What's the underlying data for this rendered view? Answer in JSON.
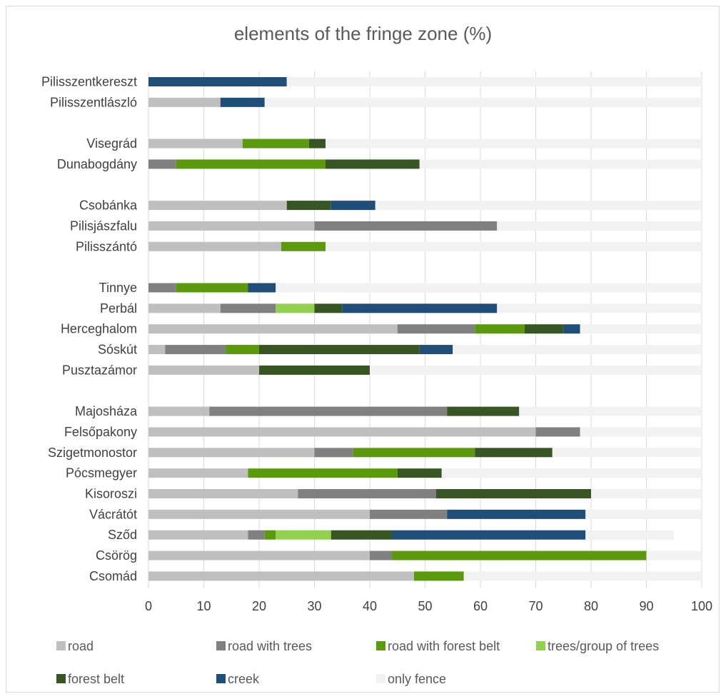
{
  "chart_data": {
    "type": "bar",
    "orientation": "horizontal",
    "stacked": true,
    "title": "elements of the fringe zone (%)",
    "xlim": [
      0,
      100
    ],
    "x_ticks": [
      0,
      10,
      20,
      30,
      40,
      50,
      60,
      70,
      80,
      90,
      100
    ],
    "grid": "vertical",
    "legend_position": "bottom",
    "categories": [
      "Pilisszentkereszt",
      "Pilisszentlászló",
      "",
      "Visegrád",
      "Dunabogdány",
      "",
      "Csobánka",
      "Pilisjászfalu",
      "Pilisszántó",
      "",
      "Tinnye",
      "Perbál",
      "Herceghalom",
      "Sóskút",
      "Pusztazámor",
      "",
      "Majosháza",
      "Felsőpakony",
      "Szigetmonostor",
      "Pócsmegyer",
      "Kisoroszi",
      "Vácrátót",
      "Sződ",
      "Csörög",
      "Csomád"
    ],
    "series": [
      {
        "name": "road",
        "color": "#bfbfbf",
        "values": [
          0,
          13,
          0,
          17,
          0,
          0,
          25,
          30,
          24,
          0,
          0,
          13,
          45,
          3,
          20,
          0,
          11,
          70,
          30,
          18,
          27,
          40,
          18,
          40,
          48
        ]
      },
      {
        "name": "road with trees",
        "color": "#808080",
        "values": [
          0,
          0,
          0,
          0,
          5,
          0,
          0,
          33,
          0,
          0,
          5,
          10,
          14,
          11,
          0,
          0,
          43,
          8,
          7,
          0,
          25,
          14,
          3,
          4,
          0
        ]
      },
      {
        "name": "road with forest belt",
        "color": "#5b9a0c",
        "values": [
          0,
          0,
          0,
          12,
          27,
          0,
          0,
          0,
          8,
          0,
          13,
          0,
          9,
          6,
          0,
          0,
          0,
          0,
          22,
          27,
          0,
          0,
          2,
          46,
          9
        ]
      },
      {
        "name": "trees/group of trees",
        "color": "#92d050",
        "values": [
          0,
          0,
          0,
          0,
          0,
          0,
          0,
          0,
          0,
          0,
          0,
          7,
          0,
          0,
          0,
          0,
          0,
          0,
          0,
          0,
          0,
          0,
          10,
          0,
          0
        ]
      },
      {
        "name": "forest belt",
        "color": "#375623",
        "values": [
          0,
          0,
          0,
          3,
          17,
          0,
          8,
          0,
          0,
          0,
          0,
          5,
          7,
          29,
          20,
          0,
          13,
          0,
          14,
          8,
          28,
          0,
          11,
          0,
          0
        ]
      },
      {
        "name": "creek",
        "color": "#1f4e79",
        "values": [
          25,
          8,
          0,
          0,
          0,
          0,
          8,
          0,
          0,
          0,
          5,
          28,
          3,
          6,
          0,
          0,
          0,
          0,
          0,
          0,
          0,
          25,
          35,
          0,
          0
        ]
      },
      {
        "name": "only fence",
        "color": "#f2f2f2",
        "values": [
          75,
          79,
          0,
          68,
          51,
          0,
          59,
          37,
          68,
          0,
          77,
          37,
          22,
          45,
          60,
          0,
          33,
          22,
          27,
          47,
          20,
          21,
          16,
          10,
          43
        ]
      }
    ]
  }
}
